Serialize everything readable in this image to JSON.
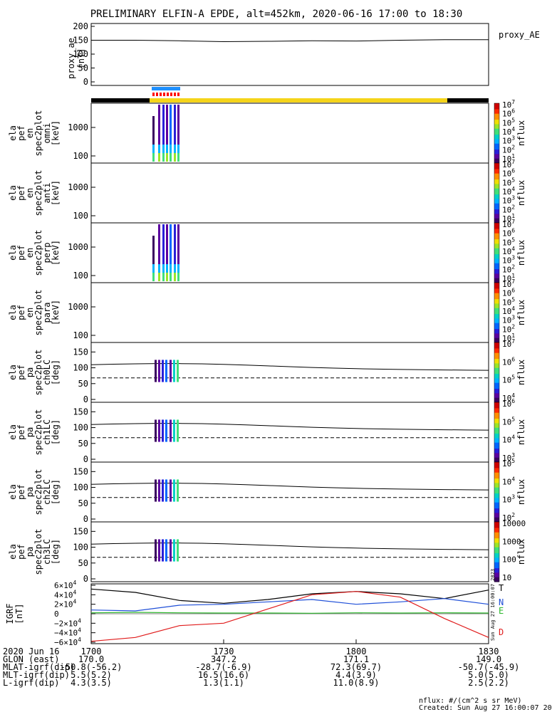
{
  "title": "PRELIMINARY ELFIN-A EPDE, alt=452km, 2020-06-16 17:00 to 18:30",
  "colors": {
    "blue_bar": "#1e90ff",
    "red_bar": "#ff0000",
    "yellow_bar": "#f5d41a",
    "black_bar": "#000000",
    "trace": "#000000",
    "grf_N": "#1f4fd8",
    "grf_E": "#2db82d",
    "grf_D": "#e01b1b",
    "grf_T": "#000000"
  },
  "panels": {
    "ae": {
      "ylabel": "proxy_ae\n[nT]",
      "ticks": [
        "200",
        "150",
        "100",
        "50",
        "0"
      ],
      "legend": "proxy_AE"
    },
    "spec": [
      {
        "ylabel": [
          "ela",
          "pef",
          "en",
          "spec2plot",
          "omni",
          "[keV]"
        ],
        "ticks": [
          "1000",
          "100"
        ],
        "cbar_ticks": [
          "10^7",
          "10^6",
          "10^5",
          "10^4",
          "10^3",
          "10^2",
          "10^1"
        ],
        "cbar_label": "nflux"
      },
      {
        "ylabel": [
          "ela",
          "pef",
          "en",
          "spec2plot",
          "anti",
          "[keV]"
        ],
        "ticks": [
          "1000",
          "100"
        ],
        "cbar_ticks": [
          "10^7",
          "10^6",
          "10^5",
          "10^4",
          "10^3",
          "10^2",
          "10^1"
        ],
        "cbar_label": "nflux"
      },
      {
        "ylabel": [
          "ela",
          "pef",
          "en",
          "spec2plot",
          "perp",
          "[keV]"
        ],
        "ticks": [
          "1000",
          "100"
        ],
        "cbar_ticks": [
          "10^7",
          "10^6",
          "10^5",
          "10^4",
          "10^3",
          "10^2",
          "10^1"
        ],
        "cbar_label": "nflux"
      },
      {
        "ylabel": [
          "ela",
          "pef",
          "en",
          "spec2plot",
          "para",
          "[keV]"
        ],
        "ticks": [
          "1000",
          "100"
        ],
        "cbar_ticks": [
          "10^7",
          "10^6",
          "10^5",
          "10^4",
          "10^3",
          "10^2",
          "10^1"
        ],
        "cbar_label": "nflux"
      }
    ],
    "pa": [
      {
        "ylabel": [
          "ela",
          "pef",
          "pa",
          "spec2plot",
          "ch0LC",
          "[deg]"
        ],
        "ticks": [
          "150",
          "100",
          "50",
          "0"
        ],
        "cbar_ticks": [
          "10^7",
          "10^6",
          "10^5",
          "10^4"
        ],
        "cbar_label": "nflux"
      },
      {
        "ylabel": [
          "ela",
          "pef",
          "pa",
          "spec2plot",
          "ch1LC",
          "[deg]"
        ],
        "ticks": [
          "150",
          "100",
          "50",
          "0"
        ],
        "cbar_ticks": [
          "10^6",
          "10^5",
          "10^4",
          "10^3"
        ],
        "cbar_label": "nflux"
      },
      {
        "ylabel": [
          "ela",
          "pef",
          "pa",
          "spec2plot",
          "ch2LC",
          "[deg]"
        ],
        "ticks": [
          "150",
          "100",
          "50",
          "0"
        ],
        "cbar_ticks": [
          "10^5",
          "10^4",
          "10^3",
          "10^2"
        ],
        "cbar_label": "nflux"
      },
      {
        "ylabel": [
          "ela",
          "pef",
          "pa",
          "spec2plot",
          "ch3LC",
          "[deg]"
        ],
        "ticks": [
          "150",
          "100",
          "50",
          "0"
        ],
        "cbar_ticks": [
          "10000",
          "1000",
          "100",
          "10"
        ],
        "cbar_label": "nflux"
      }
    ],
    "grf": {
      "ylabel": "IGRF\n[nT]",
      "ticks": [
        "6×10^4",
        "4×10^4",
        "2×10^4",
        "0",
        "−2×10^4",
        "−4×10^4",
        "−6×10^4"
      ],
      "labels": [
        "T",
        "N",
        "E",
        "D"
      ],
      "stamp": "Sun Aug 27 16:00:07 2023"
    }
  },
  "xaxis": {
    "ticks": [
      "1700",
      "1730",
      "1800",
      "1830"
    ]
  },
  "footer_rows": [
    {
      "label": "2020 Jun 16",
      "vals": [
        "1700",
        "1730",
        "1800",
        "1830"
      ]
    },
    {
      "label": "GLON (east)",
      "vals": [
        "170.0",
        "347.2",
        "171.1",
        "149.0"
      ]
    },
    {
      "label": "MLAT-igrf(dip)",
      "vals": [
        "-50.8(-56.2)",
        "-28.7(-6.9)",
        "72.3(69.7)",
        "-50.7(-45.9)"
      ]
    },
    {
      "label": "MLT-igrf(dip)",
      "vals": [
        "5.5(5.2)",
        "16.5(16.6)",
        "4.4(3.9)",
        "5.0(5.0)"
      ]
    },
    {
      "label": "L-igrf(dip)",
      "vals": [
        "4.3(3.5)",
        "1.3(1.1)",
        "11.0(8.9)",
        "2.5(2.2)"
      ]
    }
  ],
  "notes": {
    "units": "nflux: #/(cm^2 s sr MeV)",
    "created": "Created: Sun Aug 27 16:00:07 2023"
  },
  "chart_data": [
    {
      "type": "line",
      "title": "PRELIMINARY ELFIN-A EPDE, alt=452km, 2020-06-16 17:00 to 18:30",
      "ylabel": "proxy_ae [nT]",
      "ylim": [
        0,
        200
      ],
      "series": [
        {
          "name": "proxy_AE",
          "x": [
            "17:00",
            "17:10",
            "17:20",
            "17:30",
            "17:40",
            "17:50",
            "18:00",
            "18:10",
            "18:20",
            "18:30"
          ],
          "values": [
            150,
            150,
            148,
            145,
            146,
            148,
            147,
            150,
            152,
            152
          ]
        }
      ]
    },
    {
      "type": "heatmap",
      "ylabel": "ela pef en spec2plot omni [keV]",
      "zlabel": "nflux",
      "active_interval": [
        "17:15",
        "17:21"
      ]
    },
    {
      "type": "heatmap",
      "ylabel": "ela pef en spec2plot anti [keV]",
      "zlabel": "nflux"
    },
    {
      "type": "heatmap",
      "ylabel": "ela pef en spec2plot perp [keV]",
      "zlabel": "nflux",
      "active_interval": [
        "17:15",
        "17:21"
      ]
    },
    {
      "type": "heatmap",
      "ylabel": "ela pef en spec2plot para [keV]",
      "zlabel": "nflux"
    },
    {
      "type": "line",
      "ylabel": "IGRF [nT]",
      "ylim": [
        -60000,
        60000
      ],
      "x": [
        "17:00",
        "17:10",
        "17:20",
        "17:30",
        "17:40",
        "17:50",
        "18:00",
        "18:10",
        "18:20",
        "18:30"
      ],
      "series": [
        {
          "name": "T",
          "values": [
            52000,
            45000,
            28000,
            22000,
            30000,
            42000,
            47000,
            42000,
            32000,
            50000
          ]
        },
        {
          "name": "N",
          "values": [
            8000,
            6000,
            18000,
            20000,
            25000,
            30000,
            20000,
            25000,
            32000,
            20000
          ]
        },
        {
          "name": "E",
          "values": [
            2000,
            3000,
            2000,
            1500,
            1500,
            1000,
            2000,
            1500,
            2000,
            1500
          ]
        },
        {
          "name": "D",
          "values": [
            -58000,
            -50000,
            -25000,
            -20000,
            10000,
            40000,
            47000,
            35000,
            -10000,
            -50000
          ]
        }
      ]
    }
  ]
}
